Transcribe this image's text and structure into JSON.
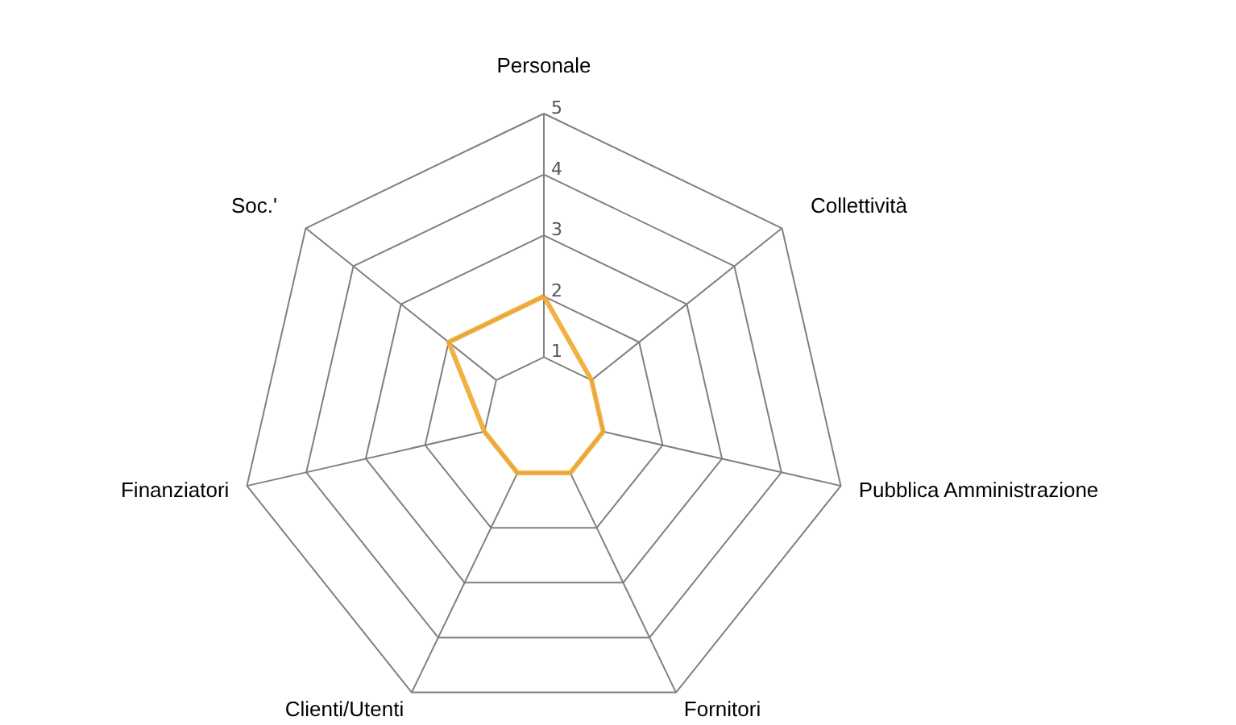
{
  "chart_data": {
    "type": "radar",
    "categories": [
      "Personale",
      "Collettività",
      "Pubblica Amministrazione",
      "Fornitori",
      "Clienti/Utenti",
      "Finanziatori",
      "Soc.'"
    ],
    "series": [
      {
        "color": "#f0a830",
        "values": [
          2,
          1,
          1,
          1,
          1,
          1,
          2
        ]
      }
    ],
    "ylim": [
      0,
      5
    ],
    "yticks": [
      1,
      2,
      3,
      4,
      5
    ],
    "grid": true
  }
}
